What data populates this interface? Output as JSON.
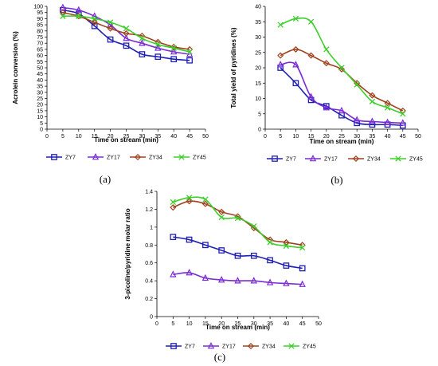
{
  "colors": {
    "ZY7": "#1f1fb4",
    "ZY17": "#7a2bd6",
    "ZY34": "#a0401e",
    "ZY45": "#3ccf2a",
    "axis": "#000000"
  },
  "chart_data": [
    {
      "type": "line",
      "panel_label": "(a)",
      "xlabel": "Time on stream (min)",
      "ylabel": "Acrolein conversion (%)",
      "xlim": [
        0,
        50
      ],
      "ylim": [
        0,
        100
      ],
      "xticks": [
        "0",
        "5",
        "10",
        "15",
        "20",
        "25",
        "30",
        "35",
        "40",
        "45",
        "50"
      ],
      "yticks": [
        "0",
        "5",
        "10",
        "15",
        "20",
        "25",
        "30",
        "35",
        "40",
        "45",
        "50",
        "55",
        "60",
        "65",
        "70",
        "75",
        "80",
        "85",
        "90",
        "95",
        "100"
      ],
      "x": [
        5,
        10,
        15,
        20,
        25,
        30,
        35,
        40,
        45
      ],
      "legend_position": "bottom",
      "series": [
        {
          "name": "ZY7",
          "marker": "square",
          "values": [
            97,
            94,
            84,
            73,
            68,
            61,
            59,
            57,
            56
          ]
        },
        {
          "name": "ZY17",
          "marker": "triangle",
          "values": [
            99,
            97,
            92,
            85,
            74,
            70,
            66,
            63,
            61
          ]
        },
        {
          "name": "ZY34",
          "marker": "diamond",
          "values": [
            95,
            92,
            87,
            82,
            78,
            76,
            71,
            67,
            65
          ]
        },
        {
          "name": "ZY45",
          "marker": "x",
          "values": [
            92,
            92,
            90,
            87,
            82,
            74,
            69,
            66,
            63
          ]
        }
      ]
    },
    {
      "type": "line",
      "panel_label": "(b)",
      "xlabel": "Time on stream (min)",
      "ylabel": "Total yield of pyridines (%)",
      "xlim": [
        0,
        50
      ],
      "ylim": [
        0,
        40
      ],
      "xticks": [
        "0",
        "5",
        "10",
        "15",
        "20",
        "25",
        "30",
        "35",
        "40",
        "45",
        "50"
      ],
      "yticks": [
        "0",
        "5",
        "10",
        "15",
        "20",
        "25",
        "30",
        "35",
        "40"
      ],
      "x": [
        5,
        10,
        15,
        20,
        25,
        30,
        35,
        40,
        45
      ],
      "legend_position": "bottom",
      "series": [
        {
          "name": "ZY7",
          "marker": "square",
          "values": [
            20,
            15,
            9.5,
            7.5,
            4.5,
            2,
            1.5,
            1.5,
            1.2
          ]
        },
        {
          "name": "ZY17",
          "marker": "triangle",
          "values": [
            21,
            21,
            10.5,
            7,
            6,
            3,
            2.5,
            2.2,
            2
          ]
        },
        {
          "name": "ZY34",
          "marker": "diamond",
          "values": [
            24,
            26,
            24,
            21.5,
            19.5,
            15,
            11,
            8.5,
            6
          ]
        },
        {
          "name": "ZY45",
          "marker": "x",
          "values": [
            34,
            36,
            35,
            26,
            20,
            14.5,
            9,
            7,
            5
          ]
        }
      ]
    },
    {
      "type": "line",
      "panel_label": "(c)",
      "xlabel": "Time on stream (min)",
      "ylabel": "3-picoline/pyridine molar ratio",
      "xlim": [
        0,
        50
      ],
      "ylim": [
        0,
        1.4
      ],
      "xticks": [
        "0",
        "5",
        "10",
        "15",
        "20",
        "25",
        "30",
        "35",
        "40",
        "45",
        "50"
      ],
      "yticks": [
        "0",
        "0.2",
        "0.4",
        "0.6",
        "0.8",
        "1",
        "1.2",
        "1.4"
      ],
      "x": [
        5,
        10,
        15,
        20,
        25,
        30,
        35,
        40,
        45
      ],
      "legend_position": "bottom",
      "series": [
        {
          "name": "ZY7",
          "marker": "square",
          "values": [
            0.89,
            0.86,
            0.8,
            0.74,
            0.68,
            0.68,
            0.63,
            0.57,
            0.54
          ]
        },
        {
          "name": "ZY17",
          "marker": "triangle",
          "values": [
            0.47,
            0.49,
            0.43,
            0.41,
            0.4,
            0.4,
            0.38,
            0.37,
            0.36
          ]
        },
        {
          "name": "ZY34",
          "marker": "diamond",
          "values": [
            1.22,
            1.29,
            1.26,
            1.17,
            1.12,
            0.99,
            0.86,
            0.83,
            0.8
          ]
        },
        {
          "name": "ZY45",
          "marker": "x",
          "values": [
            1.28,
            1.33,
            1.31,
            1.11,
            1.1,
            1.01,
            0.83,
            0.79,
            0.77
          ]
        }
      ]
    }
  ]
}
